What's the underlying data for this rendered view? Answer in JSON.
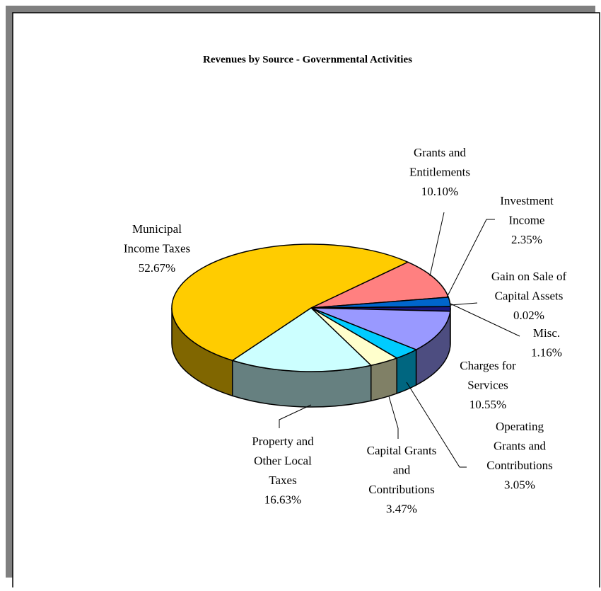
{
  "chart_data": {
    "type": "pie3d",
    "title": "Revenues by Source - Governmental Activities",
    "categories": [
      [
        "Grants and",
        "Entitlements"
      ],
      [
        "Investment",
        "Income"
      ],
      [
        "Gain on Sale of",
        "Capital Assets"
      ],
      [
        "Misc."
      ],
      [
        "Charges for",
        "Services"
      ],
      [
        "Operating",
        "Grants and",
        "Contributions"
      ],
      [
        "Capital Grants",
        "and",
        "Contributions"
      ],
      [
        "Property and",
        "Other Local",
        "Taxes"
      ],
      [
        "Municipal",
        "Income Taxes"
      ]
    ],
    "values": [
      10.1,
      2.35,
      0.02,
      1.16,
      10.55,
      3.05,
      3.47,
      16.63,
      52.67
    ],
    "value_labels": [
      "10.10%",
      "2.35%",
      "0.02%",
      "1.16%",
      "10.55%",
      "3.05%",
      "3.47%",
      "16.63%",
      "52.67%"
    ],
    "colors": [
      "#ff8080",
      "#0066cc",
      "#800080",
      "#1a1a80",
      "#9999ff",
      "#00ccff",
      "#ffffcc",
      "#ccffff",
      "#ffcc00"
    ]
  }
}
